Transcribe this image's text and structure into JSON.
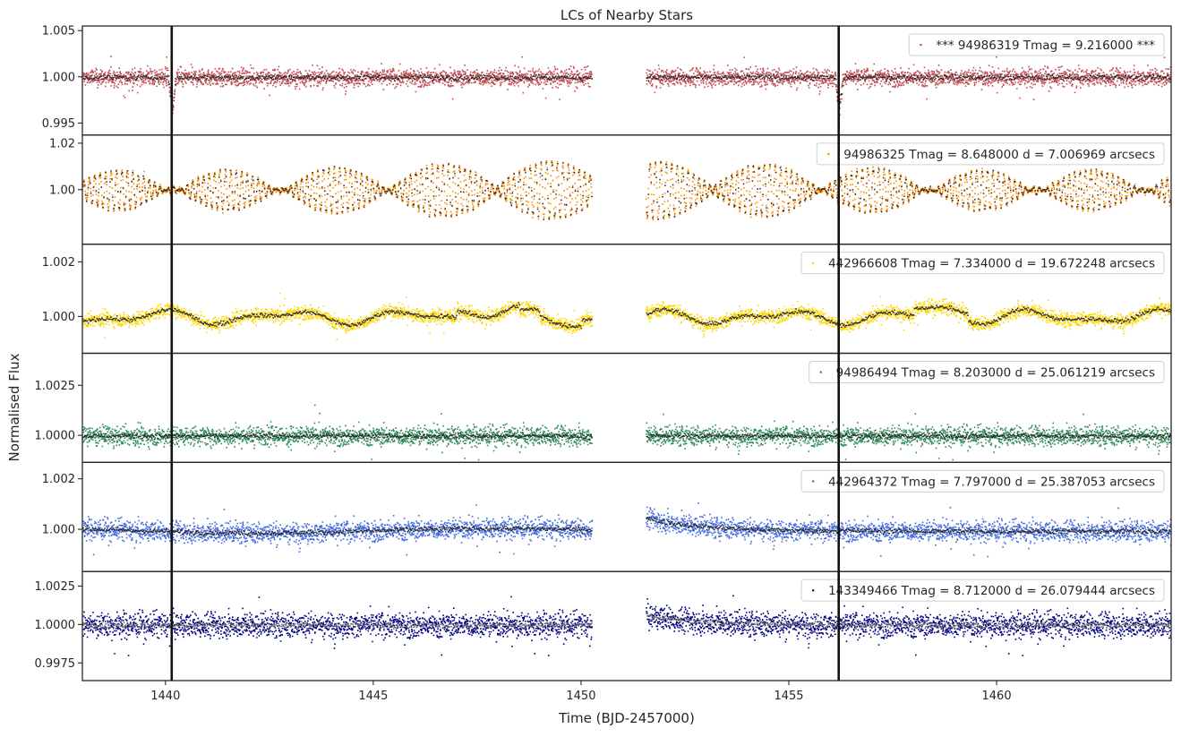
{
  "chart_data": {
    "type": "scatter",
    "title": "LCs of Nearby Stars",
    "xlabel": "Time (BJD-2457000)",
    "ylabel": "Normalised Flux",
    "xlim": [
      1438.0,
      1464.2
    ],
    "x_ticks": [
      1440,
      1445,
      1450,
      1455,
      1460
    ],
    "x_tick_labels": [
      "1440",
      "1445",
      "1450",
      "1455",
      "1460"
    ],
    "data_gap": [
      1450.25,
      1451.55
    ],
    "transit_markers": [
      1440.15,
      1456.2
    ],
    "grid": false,
    "legend_position": "upper right",
    "binned_color": "#262626",
    "panels": [
      {
        "name": "*** 94986319  Tmag = 9.216000 ***",
        "color": "#c44e52",
        "binned_color": "#262626",
        "ylim": [
          0.9937,
          1.0055
        ],
        "y_ticks": [
          0.995,
          1.0,
          1.005
        ],
        "y_tick_labels": [
          "0.995",
          "1.000",
          "1.005"
        ],
        "noise": 0.0009,
        "binned_noise": 0.0003,
        "transit_depth": 0.0035
      },
      {
        "name": "94986325  Tmag = 8.648000   d = 7.006969 arcsecs",
        "color": "#ff8c00",
        "binned_color": "#262626",
        "ylim": [
          0.9765,
          1.0235
        ],
        "y_ticks": [
          1.0,
          1.02
        ],
        "y_tick_labels": [
          "1.00",
          "1.02"
        ],
        "noise": 0.0008,
        "binned_noise": 0.0008,
        "pulsation": "beating"
      },
      {
        "name": "442966608  Tmag = 7.334000   d = 19.672248 arcsecs",
        "color": "#ffd700",
        "binned_color": "#262626",
        "ylim": [
          0.99865,
          1.00265
        ],
        "y_ticks": [
          1.0,
          1.002
        ],
        "y_tick_labels": [
          "1.000",
          "1.002"
        ],
        "noise": 0.00024,
        "binned_noise": 8e-05
      },
      {
        "name": "94986494  Tmag = 8.203000   d = 25.061219 arcsecs",
        "color": "#2e8b57",
        "binned_color": "#262626",
        "ylim": [
          0.99865,
          1.0041
        ],
        "y_ticks": [
          1.0,
          1.0025
        ],
        "y_tick_labels": [
          "1.0000",
          "1.0025"
        ],
        "noise": 0.00045,
        "binned_noise": 0.00012
      },
      {
        "name": "442964372  Tmag = 7.797000   d = 25.387053 arcsecs",
        "color": "#4169e1",
        "binned_color": "#262626",
        "ylim": [
          0.99833,
          1.00265
        ],
        "y_ticks": [
          1.0,
          1.002
        ],
        "y_tick_labels": [
          "1.000",
          "1.002"
        ],
        "noise": 0.00038,
        "binned_noise": 0.0001
      },
      {
        "name": "143349466  Tmag = 8.712000   d = 26.079444 arcsecs",
        "color": "#000080",
        "binned_color": "#6a6a6a",
        "ylim": [
          0.99635,
          1.00345
        ],
        "y_ticks": [
          0.9975,
          1.0,
          1.0025
        ],
        "y_tick_labels": [
          "0.9975",
          "1.0000",
          "1.0025"
        ],
        "noise": 0.00075,
        "binned_noise": 0.0002
      }
    ]
  }
}
